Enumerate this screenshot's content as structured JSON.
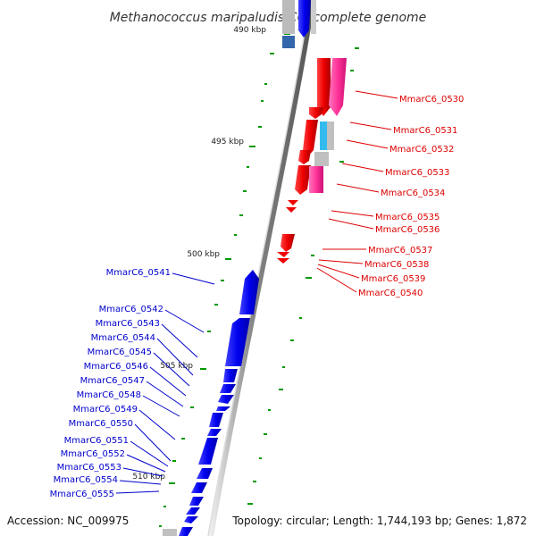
{
  "title": "Methanococcus maripaludis C6, complete genome",
  "accession": "Accession: NC_009975",
  "topology": "Topology: circular; Length: 1,744,193 bp; Genes: 1,872",
  "ticks": [
    "490 kbp",
    "495 kbp",
    "500 kbp",
    "505 kbp",
    "510 kbp"
  ],
  "colors": {
    "forward_gene": "#ee0000",
    "reverse_gene": "#0000ee",
    "rna_pink": "#ff3399",
    "rna_cyan": "#33bbee",
    "pseudo_gray": "#c0c0c0",
    "forward_label": "#dd0000",
    "reverse_label": "#0000cc",
    "gc_tick": "#009900"
  },
  "right_labels": [
    "MmarC6_0530",
    "MmarC6_0531",
    "MmarC6_0532",
    "MmarC6_0533",
    "MmarC6_0534",
    "MmarC6_0535",
    "MmarC6_0536",
    "MmarC6_0537",
    "MmarC6_0538",
    "MmarC6_0539",
    "MmarC6_0540"
  ],
  "left_labels": [
    "MmarC6_0541",
    "MmarC6_0542",
    "MmarC6_0543",
    "MmarC6_0544",
    "MmarC6_0545",
    "MmarC6_0546",
    "MmarC6_0547",
    "MmarC6_0548",
    "MmarC6_0549",
    "MmarC6_0550",
    "MmarC6_0551",
    "MmarC6_0552",
    "MmarC6_0553",
    "MmarC6_0554",
    "MmarC6_0555"
  ]
}
